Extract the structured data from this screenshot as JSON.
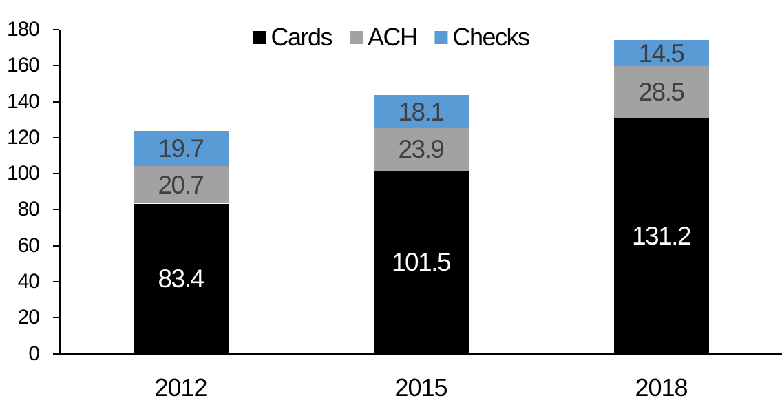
{
  "chart_data": {
    "type": "bar",
    "stacked": true,
    "title": "",
    "xlabel": "",
    "ylabel": "",
    "categories": [
      "2012",
      "2015",
      "2018"
    ],
    "series": [
      {
        "name": "Cards",
        "color": "#000000",
        "label_color": "#ffffff",
        "values": [
          83.4,
          101.5,
          131.2
        ]
      },
      {
        "name": "ACH",
        "color": "#a2a2a2",
        "label_color": "#404040",
        "values": [
          20.7,
          23.9,
          28.5
        ]
      },
      {
        "name": "Checks",
        "color": "#5b9bd5",
        "label_color": "#404040",
        "values": [
          19.7,
          18.1,
          14.5
        ]
      }
    ],
    "totals": [
      123.8,
      143.5,
      174.2
    ],
    "ylim": [
      0,
      180
    ],
    "yticks": [
      0,
      20,
      40,
      60,
      80,
      100,
      120,
      140,
      160,
      180
    ],
    "grid": false,
    "legend_position": "top-center",
    "axis_color": "#000000",
    "background_color": "#ffffff"
  }
}
